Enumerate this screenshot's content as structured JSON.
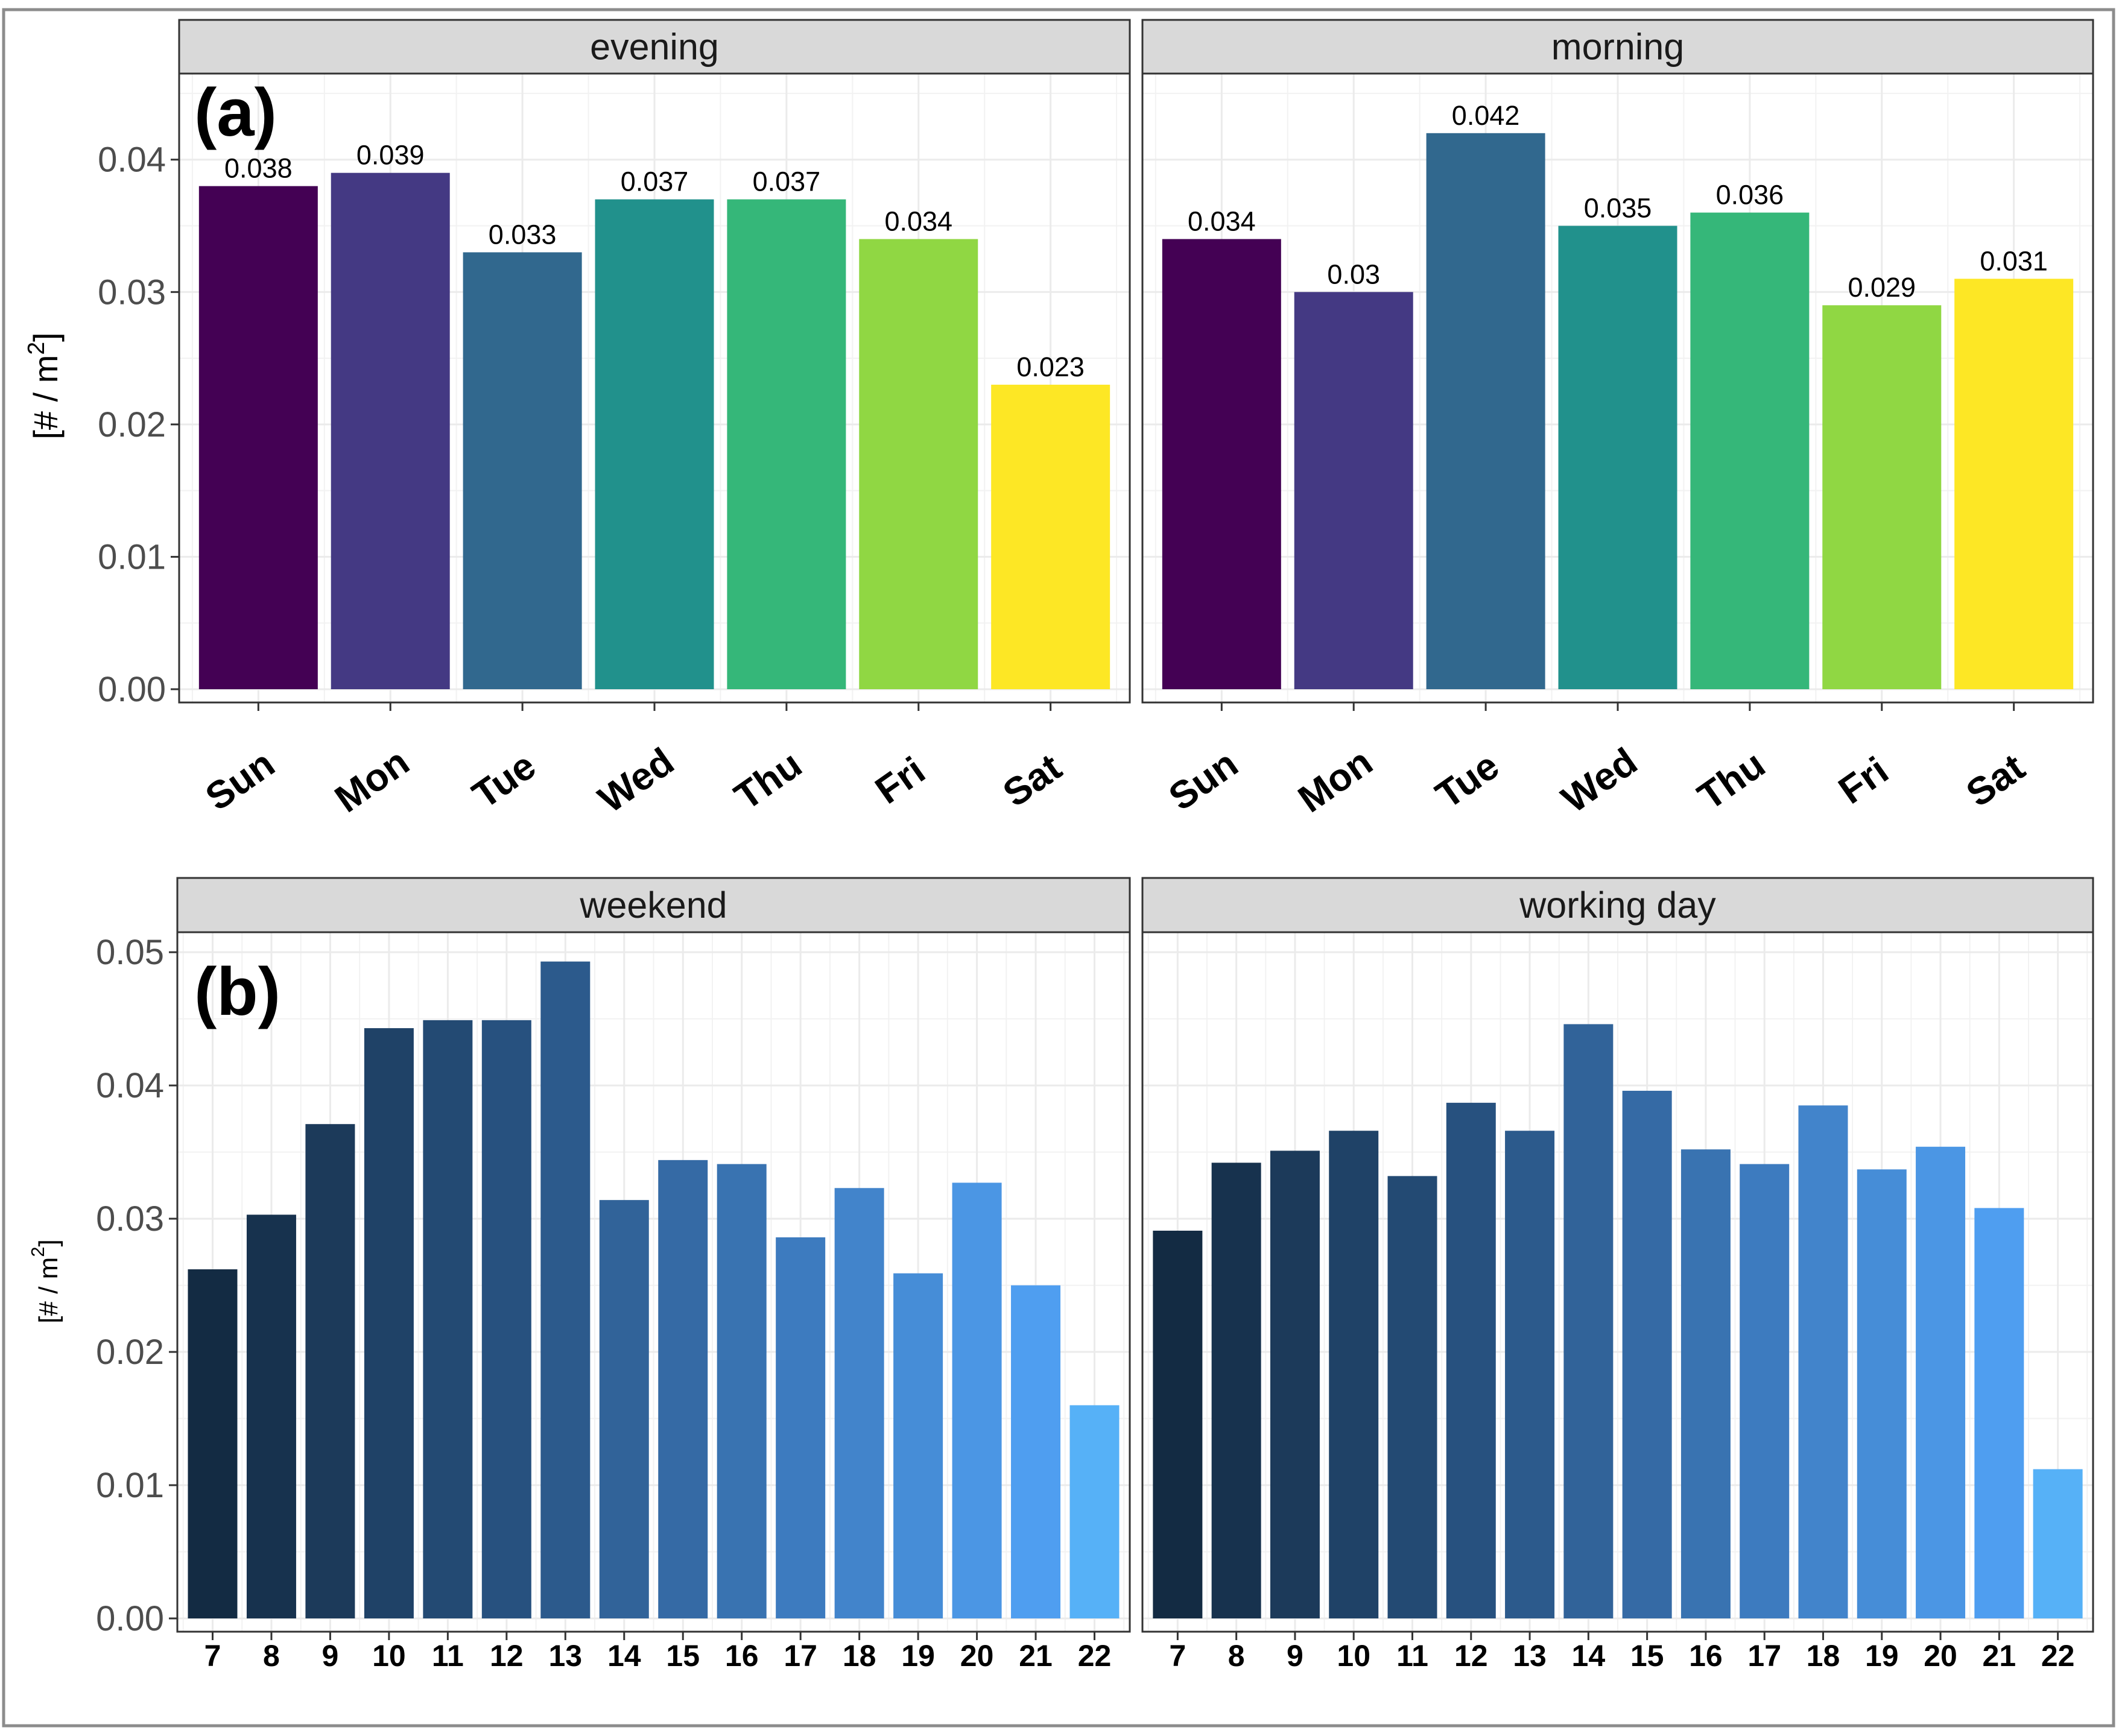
{
  "chart_data": [
    {
      "type": "bar",
      "panel_tag": "(a)",
      "ylabel": "[# / m2]",
      "ylim": [
        0,
        0.0465
      ],
      "yticks": [
        "0.00",
        "0.01",
        "0.02",
        "0.03",
        "0.04"
      ],
      "categories": [
        "Sun",
        "Mon",
        "Tue",
        "Wed",
        "Thu",
        "Fri",
        "Sat"
      ],
      "bar_colors": [
        "#440154",
        "#443983",
        "#31688e",
        "#21918c",
        "#35b779",
        "#90d743",
        "#fde725"
      ],
      "facets": [
        {
          "name": "evening",
          "values": [
            0.038,
            0.039,
            0.033,
            0.037,
            0.037,
            0.034,
            0.023
          ],
          "labels": [
            "0.038",
            "0.039",
            "0.033",
            "0.037",
            "0.037",
            "0.034",
            "0.023"
          ]
        },
        {
          "name": "morning",
          "values": [
            0.034,
            0.03,
            0.042,
            0.035,
            0.036,
            0.029,
            0.031
          ],
          "labels": [
            "0.034",
            "0.03",
            "0.042",
            "0.035",
            "0.036",
            "0.029",
            "0.031"
          ]
        }
      ]
    },
    {
      "type": "bar",
      "panel_tag": "(b)",
      "ylabel": "[# / m2]",
      "ylim": [
        0,
        0.0515
      ],
      "yticks": [
        "0.00",
        "0.01",
        "0.02",
        "0.03",
        "0.04",
        "0.05"
      ],
      "categories": [
        "7",
        "8",
        "9",
        "10",
        "11",
        "12",
        "13",
        "14",
        "15",
        "16",
        "17",
        "18",
        "19",
        "20",
        "21",
        "22"
      ],
      "bar_colors": [
        "#132b43",
        "#17324e",
        "#1c3a5a",
        "#1f4267",
        "#234a73",
        "#27517f",
        "#2c5a8c",
        "#316399",
        "#356aa5",
        "#3973b1",
        "#3d7bbf",
        "#4284cb",
        "#468dd7",
        "#4b96e4",
        "#4f9ef0",
        "#56b1f7"
      ],
      "facets": [
        {
          "name": "weekend",
          "values": [
            0.0262,
            0.0303,
            0.0371,
            0.0443,
            0.0449,
            0.0449,
            0.0493,
            0.0314,
            0.0344,
            0.0341,
            0.0286,
            0.0323,
            0.0259,
            0.0327,
            0.025,
            0.016
          ]
        },
        {
          "name": "working day",
          "values": [
            0.0291,
            0.0342,
            0.0351,
            0.0366,
            0.0332,
            0.0387,
            0.0366,
            0.0446,
            0.0396,
            0.0352,
            0.0341,
            0.0385,
            0.0337,
            0.0354,
            0.0308,
            0.0112
          ]
        }
      ]
    }
  ]
}
